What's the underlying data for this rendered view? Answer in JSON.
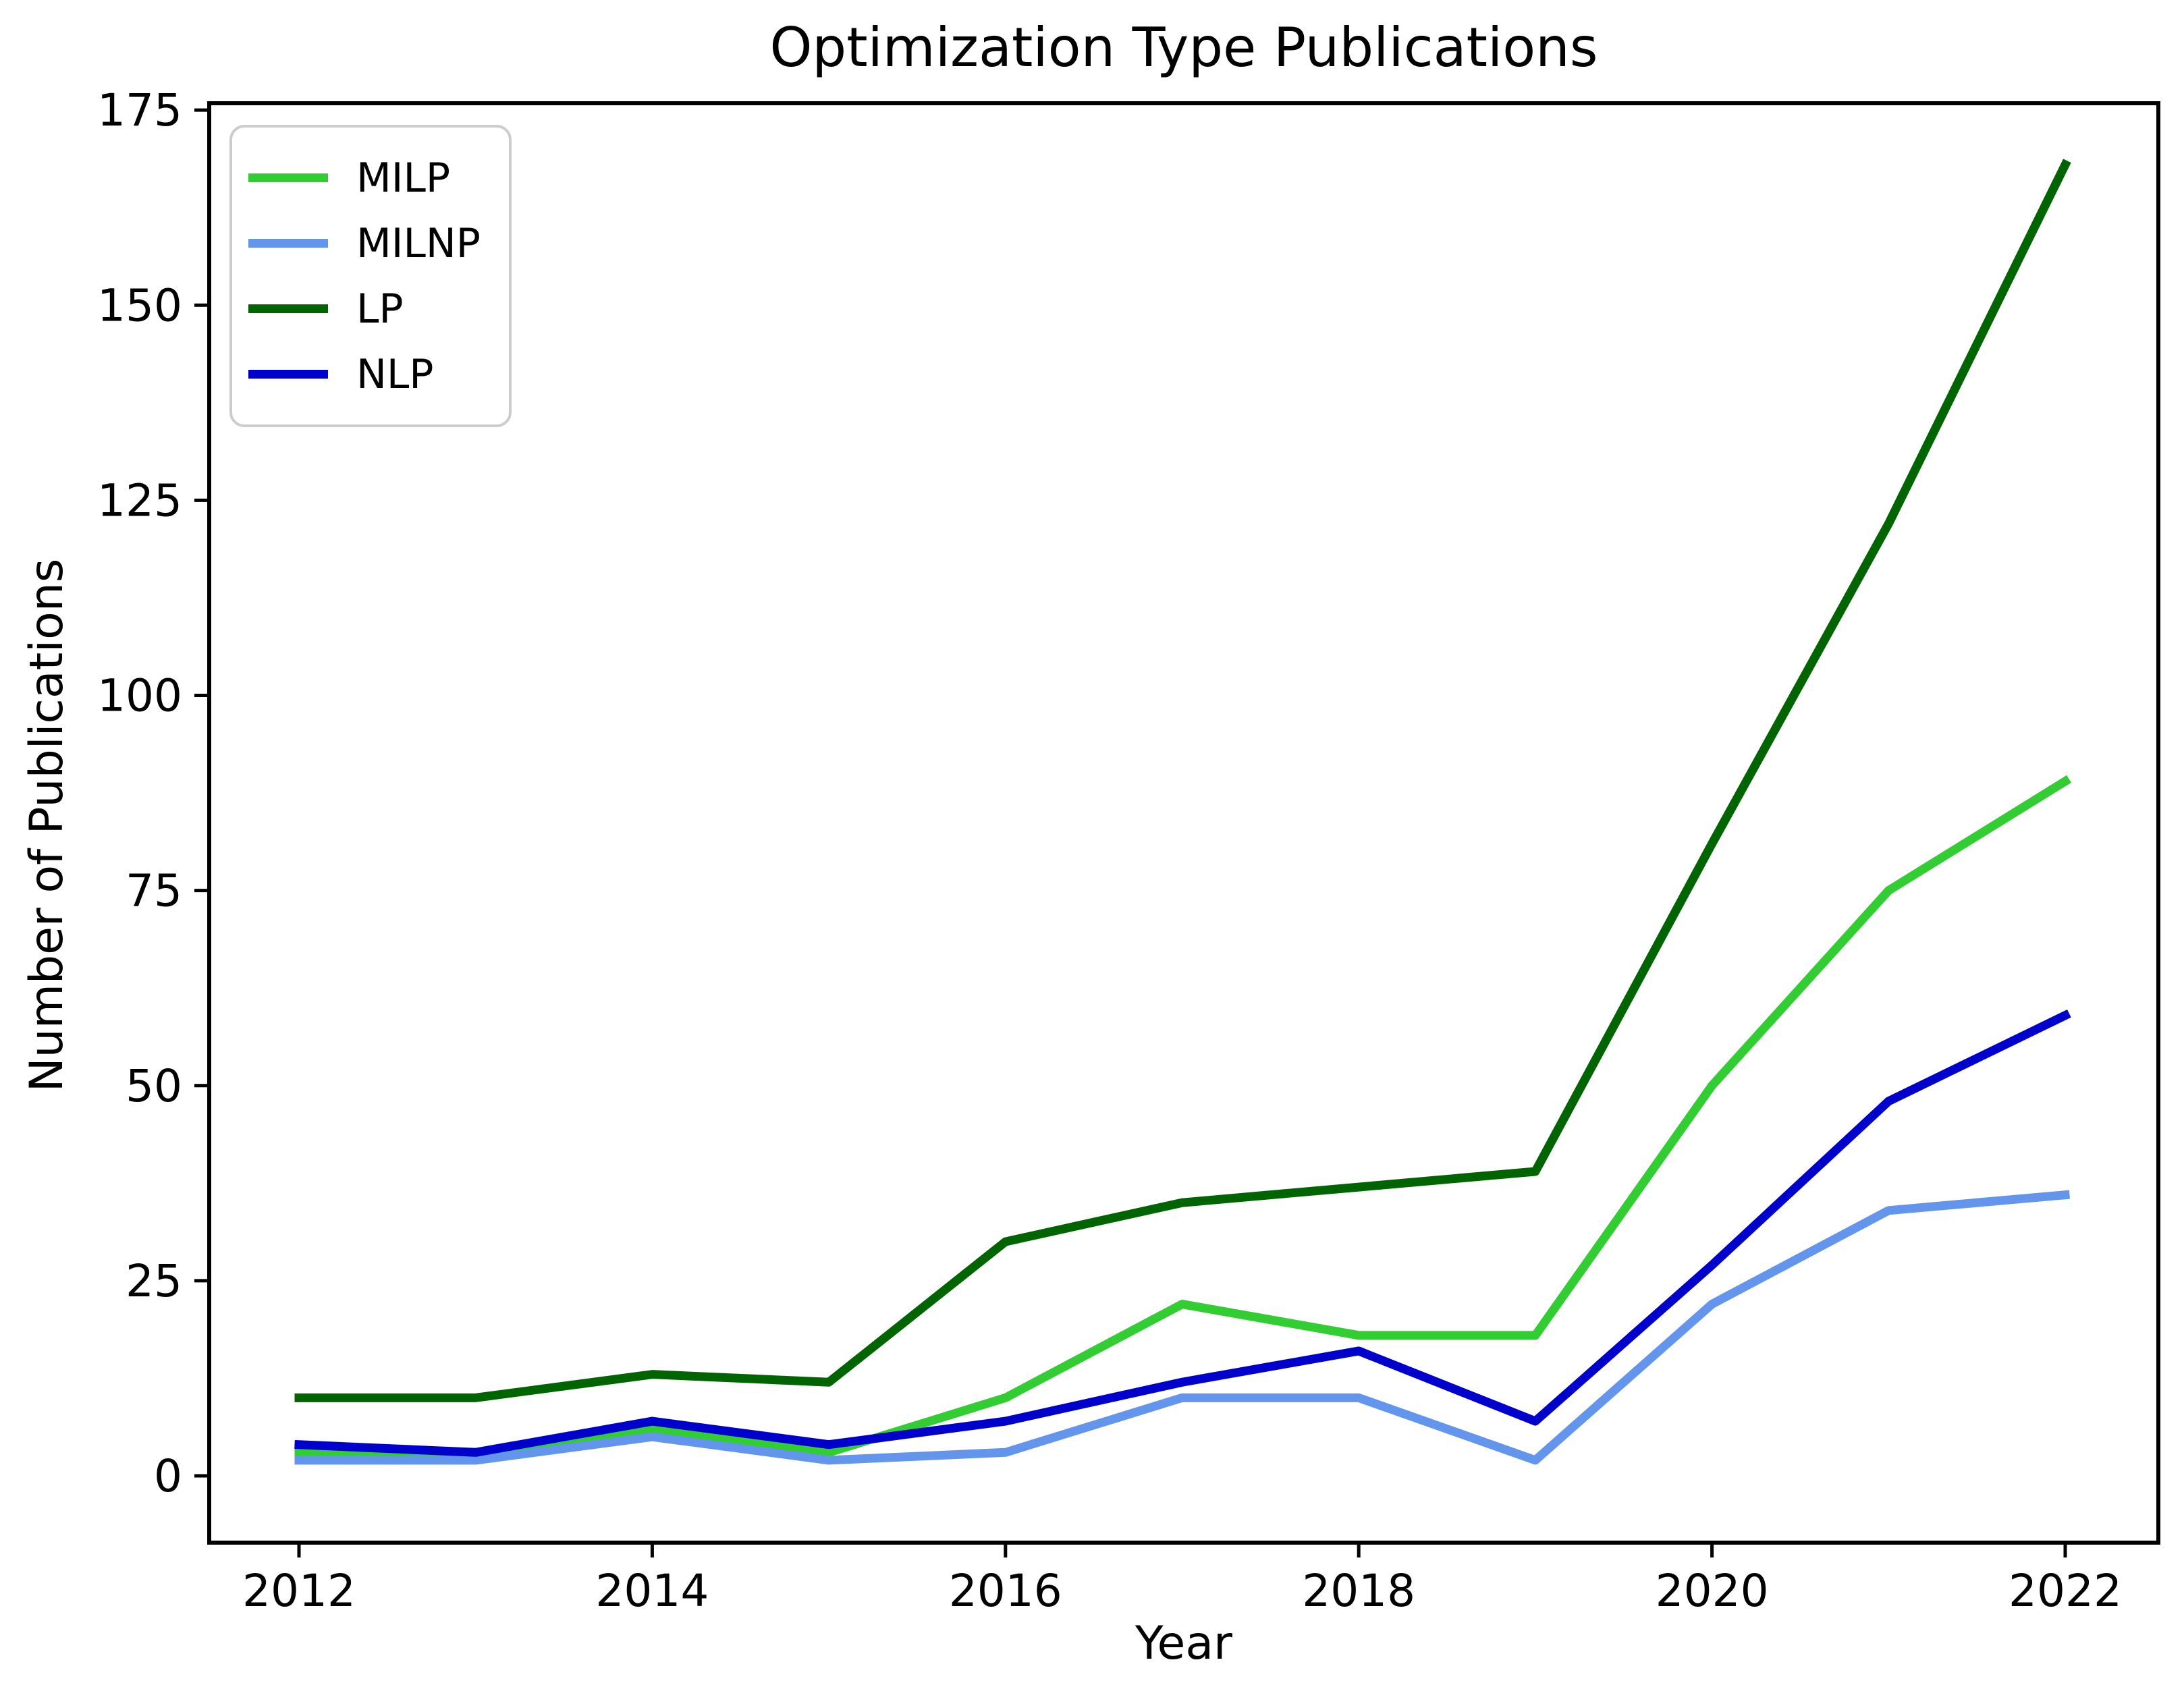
{
  "title": "Optimization Type Publications",
  "xlabel": "Year",
  "ylabel": "Number of Publications",
  "frame_color": "#000000",
  "legend_border_color": "#cccccc",
  "chart_data": {
    "type": "line",
    "x": [
      2012,
      2013,
      2014,
      2015,
      2016,
      2017,
      2018,
      2019,
      2020,
      2021,
      2022
    ],
    "series": [
      {
        "name": "MILP",
        "color": "#32CD32",
        "values": [
          3,
          3,
          6,
          3,
          10,
          22,
          18,
          18,
          50,
          75,
          89
        ]
      },
      {
        "name": "MILNP",
        "color": "#6495ED",
        "values": [
          2,
          2,
          5,
          2,
          3,
          10,
          10,
          2,
          22,
          34,
          36
        ]
      },
      {
        "name": "LP",
        "color": "#006400",
        "values": [
          10,
          10,
          13,
          12,
          30,
          35,
          37,
          39,
          81,
          122,
          168
        ]
      },
      {
        "name": "NLP",
        "color": "#0000CD",
        "values": [
          4,
          3,
          7,
          4,
          7,
          12,
          16,
          7,
          27,
          48,
          59
        ]
      }
    ],
    "x_ticks": [
      2012,
      2014,
      2016,
      2018,
      2020,
      2022
    ],
    "y_ticks": [
      0,
      25,
      50,
      75,
      100,
      125,
      150,
      175
    ],
    "xlim": [
      2011.49,
      2022.53
    ],
    "ylim": [
      -8.6,
      175.9
    ],
    "grid": false,
    "legend_position": "upper left",
    "line_width": 13
  }
}
